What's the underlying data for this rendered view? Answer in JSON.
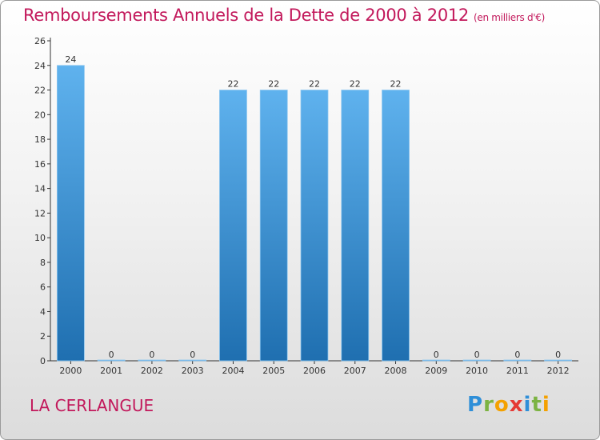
{
  "title": "Remboursements Annuels de la Dette de 2000 à 2012",
  "unit": "(en milliers d'€)",
  "place": "LA CERLANGUE",
  "logo": {
    "text": "Proxiti",
    "letters": [
      "P",
      "r",
      "o",
      "x",
      "i",
      "t",
      "i"
    ],
    "colors": [
      "#2f8fd8",
      "#7cb342",
      "#f4a100",
      "#e53935",
      "#2f8fd8",
      "#7cb342",
      "#f4a100"
    ]
  },
  "colors": {
    "bar_top": "#5fb2ee",
    "bar_bottom": "#1f6fb0",
    "accent": "#c2185b",
    "axis": "#333333"
  },
  "chart_data": {
    "type": "bar",
    "categories": [
      "2000",
      "2001",
      "2002",
      "2003",
      "2004",
      "2005",
      "2006",
      "2007",
      "2008",
      "2009",
      "2010",
      "2011",
      "2012"
    ],
    "values": [
      24,
      0,
      0,
      0,
      22,
      22,
      22,
      22,
      22,
      0,
      0,
      0,
      0
    ],
    "data_labels": [
      "24",
      "0",
      "0",
      "0",
      "22",
      "22",
      "22",
      "22",
      "22",
      "0",
      "0",
      "0",
      "0"
    ],
    "title": "Remboursements Annuels de la Dette de 2000 à 2012",
    "xlabel": "",
    "ylabel": "",
    "ylim": [
      0,
      26
    ],
    "yticks": [
      0,
      2,
      4,
      6,
      8,
      10,
      12,
      14,
      16,
      18,
      20,
      22,
      24,
      26
    ],
    "grid": false,
    "legend": "none"
  }
}
